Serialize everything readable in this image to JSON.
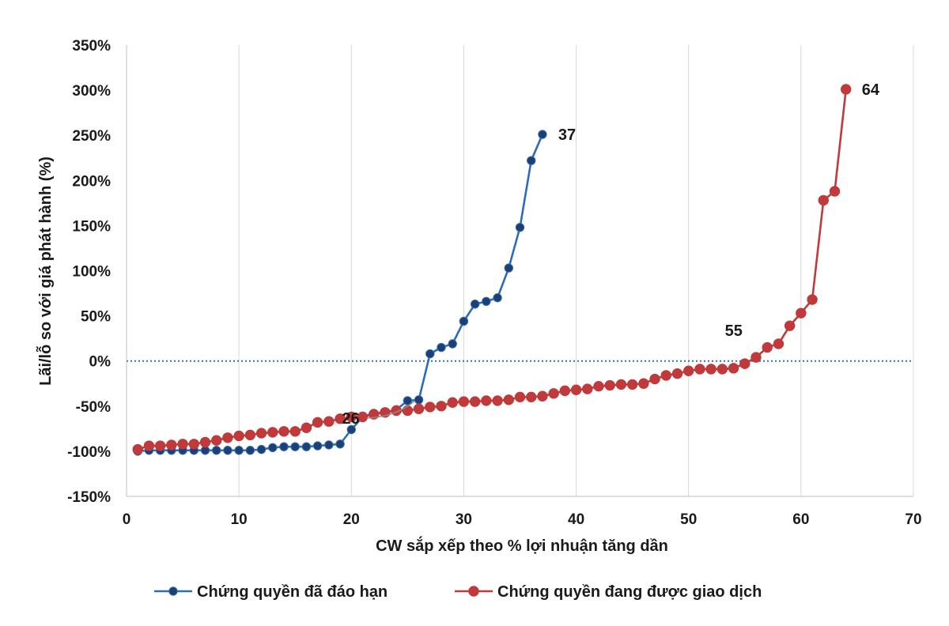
{
  "chart_data": {
    "type": "line",
    "xlabel": "CW sắp xếp theo % lợi nhuận tăng dần",
    "ylabel": "Lãi/lỗ so với giá phát hành (%)",
    "xlim": [
      0,
      70
    ],
    "ylim": [
      -150,
      350
    ],
    "x_ticks": [
      0,
      10,
      20,
      30,
      40,
      50,
      60,
      70
    ],
    "y_ticks": [
      -150,
      -100,
      -50,
      0,
      50,
      100,
      150,
      200,
      250,
      300,
      350
    ],
    "y_tick_labels": [
      "-150%",
      "-100%",
      "-50%",
      "0%",
      "50%",
      "100%",
      "150%",
      "200%",
      "250%",
      "300%",
      "350%"
    ],
    "grid": "vertical",
    "zero_line": "dotted",
    "legend_position": "bottom",
    "series": [
      {
        "name": "Chứng quyền đã đáo hạn",
        "color": "#2e6db5",
        "x": [
          1,
          2,
          3,
          4,
          5,
          6,
          7,
          8,
          9,
          10,
          11,
          12,
          13,
          14,
          15,
          16,
          17,
          18,
          19,
          20,
          21,
          22,
          23,
          24,
          25,
          26,
          27,
          28,
          29,
          30,
          31,
          32,
          33,
          34,
          35,
          36,
          37
        ],
        "values": [
          -100,
          -99,
          -99,
          -99,
          -99,
          -99,
          -99,
          -99,
          -99,
          -99,
          -99,
          -98,
          -96,
          -95,
          -95,
          -95,
          -94,
          -93,
          -92,
          -76,
          -62,
          -58,
          -57,
          -54,
          -44,
          -43,
          8,
          15,
          19,
          44,
          63,
          66,
          70,
          103,
          148,
          222,
          251
        ]
      },
      {
        "name": "Chứng quyền đang được giao dịch",
        "color": "#c0393b",
        "x": [
          1,
          2,
          3,
          4,
          5,
          6,
          7,
          8,
          9,
          10,
          11,
          12,
          13,
          14,
          15,
          16,
          17,
          18,
          19,
          20,
          21,
          22,
          23,
          24,
          25,
          26,
          27,
          28,
          29,
          30,
          31,
          32,
          33,
          34,
          35,
          36,
          37,
          38,
          39,
          40,
          41,
          42,
          43,
          44,
          45,
          46,
          47,
          48,
          49,
          50,
          51,
          52,
          53,
          54,
          55,
          56,
          57,
          58,
          59,
          60,
          61,
          62,
          63,
          64
        ],
        "values": [
          -98,
          -94,
          -94,
          -93,
          -92,
          -92,
          -90,
          -88,
          -85,
          -83,
          -82,
          -80,
          -79,
          -78,
          -78,
          -74,
          -68,
          -67,
          -64,
          -62,
          -62,
          -59,
          -57,
          -55,
          -55,
          -53,
          -51,
          -50,
          -46,
          -45,
          -45,
          -44,
          -44,
          -43,
          -40,
          -40,
          -39,
          -36,
          -33,
          -32,
          -31,
          -28,
          -27,
          -26,
          -26,
          -25,
          -20,
          -16,
          -14,
          -11,
          -9,
          -9,
          -9,
          -8,
          -3,
          4,
          15,
          19,
          39,
          53,
          68,
          178,
          188,
          301
        ]
      }
    ],
    "annotations": [
      {
        "text": "37",
        "x": 37,
        "y": 251
      },
      {
        "text": "64",
        "x": 64,
        "y": 301
      },
      {
        "text": "55",
        "x": 55,
        "y": -3
      },
      {
        "text": "26",
        "x": 26,
        "y": -43
      }
    ]
  }
}
